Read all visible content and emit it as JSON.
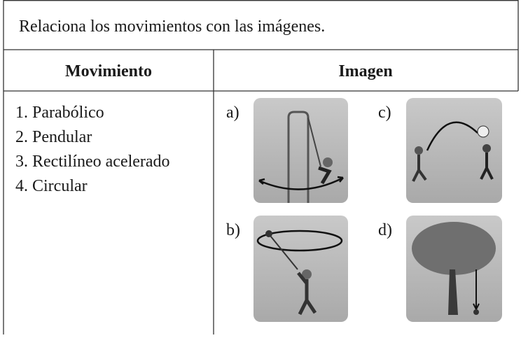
{
  "title": "Relaciona los movimientos con las imágenes.",
  "table": {
    "headers": [
      "Movimiento",
      "Imagen"
    ],
    "items": [
      "1. Parabólico",
      "2. Pendular",
      "3. Rectilíneo acelerado",
      "4. Circular"
    ],
    "images": [
      {
        "label": "a)"
      },
      {
        "label": "b)"
      },
      {
        "label": "c)"
      },
      {
        "label": "d)"
      }
    ]
  }
}
